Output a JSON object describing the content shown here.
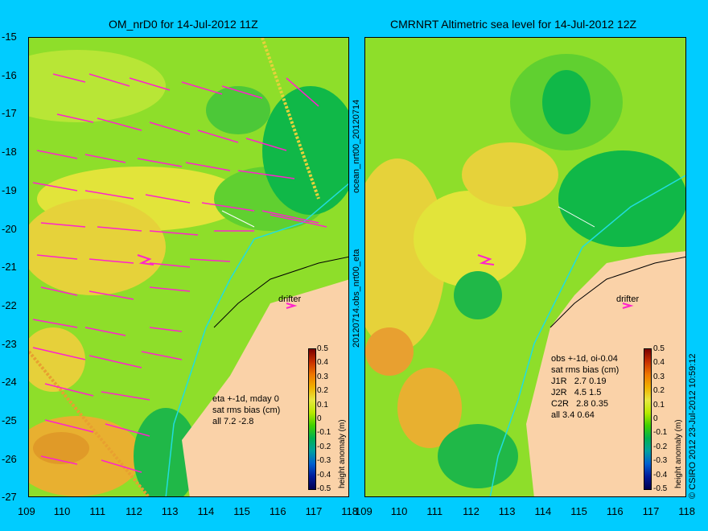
{
  "left_panel": {
    "title": "OM_nrD0 for 14-Jul-2012 11Z",
    "annotation": "eta +-1d, mday 0\nsat rms bias (cm)\nall 7.2 -2.8",
    "drifter_label": "drifter"
  },
  "right_panel": {
    "title": "CMRNRT Altimetric sea level  for 14-Jul-2012 12Z",
    "annotation": "obs +-1d, oi-0.04\nsat rms bias (cm)\nJ1R   2.7 0.19\nJ2R   4.5 1.5\nC2R   2.8 0.35\nall 3.4 0.64",
    "drifter_label": "drifter"
  },
  "axes": {
    "lat_ticks": [
      "-15",
      "-16",
      "-17",
      "-18",
      "-19",
      "-20",
      "-21",
      "-22",
      "-23",
      "-24",
      "-25",
      "-26",
      "-27"
    ],
    "lon_ticks": [
      "109",
      "110",
      "111",
      "112",
      "113",
      "114",
      "115",
      "116",
      "117",
      "118"
    ]
  },
  "colorbar": {
    "label": "height anomaly (m)",
    "ticks": [
      "0.5",
      "0.4",
      "0.3",
      "0.2",
      "0.1",
      "0",
      "-0.1",
      "-0.2",
      "-0.3",
      "-0.4",
      "-0.5"
    ]
  },
  "side_text": {
    "middle": "20120714.obs_nrt00_eta",
    "middle_top": "ocean_nrt00_20120714",
    "right": "© CSIRO 2012   23-Jul-2012 10:59:12"
  },
  "colors": {
    "background": "#00ccff",
    "land": "#fad2a8",
    "vectors": "#ff22cc",
    "drifter": "#ff22cc",
    "coast_track": "#22dddd"
  }
}
